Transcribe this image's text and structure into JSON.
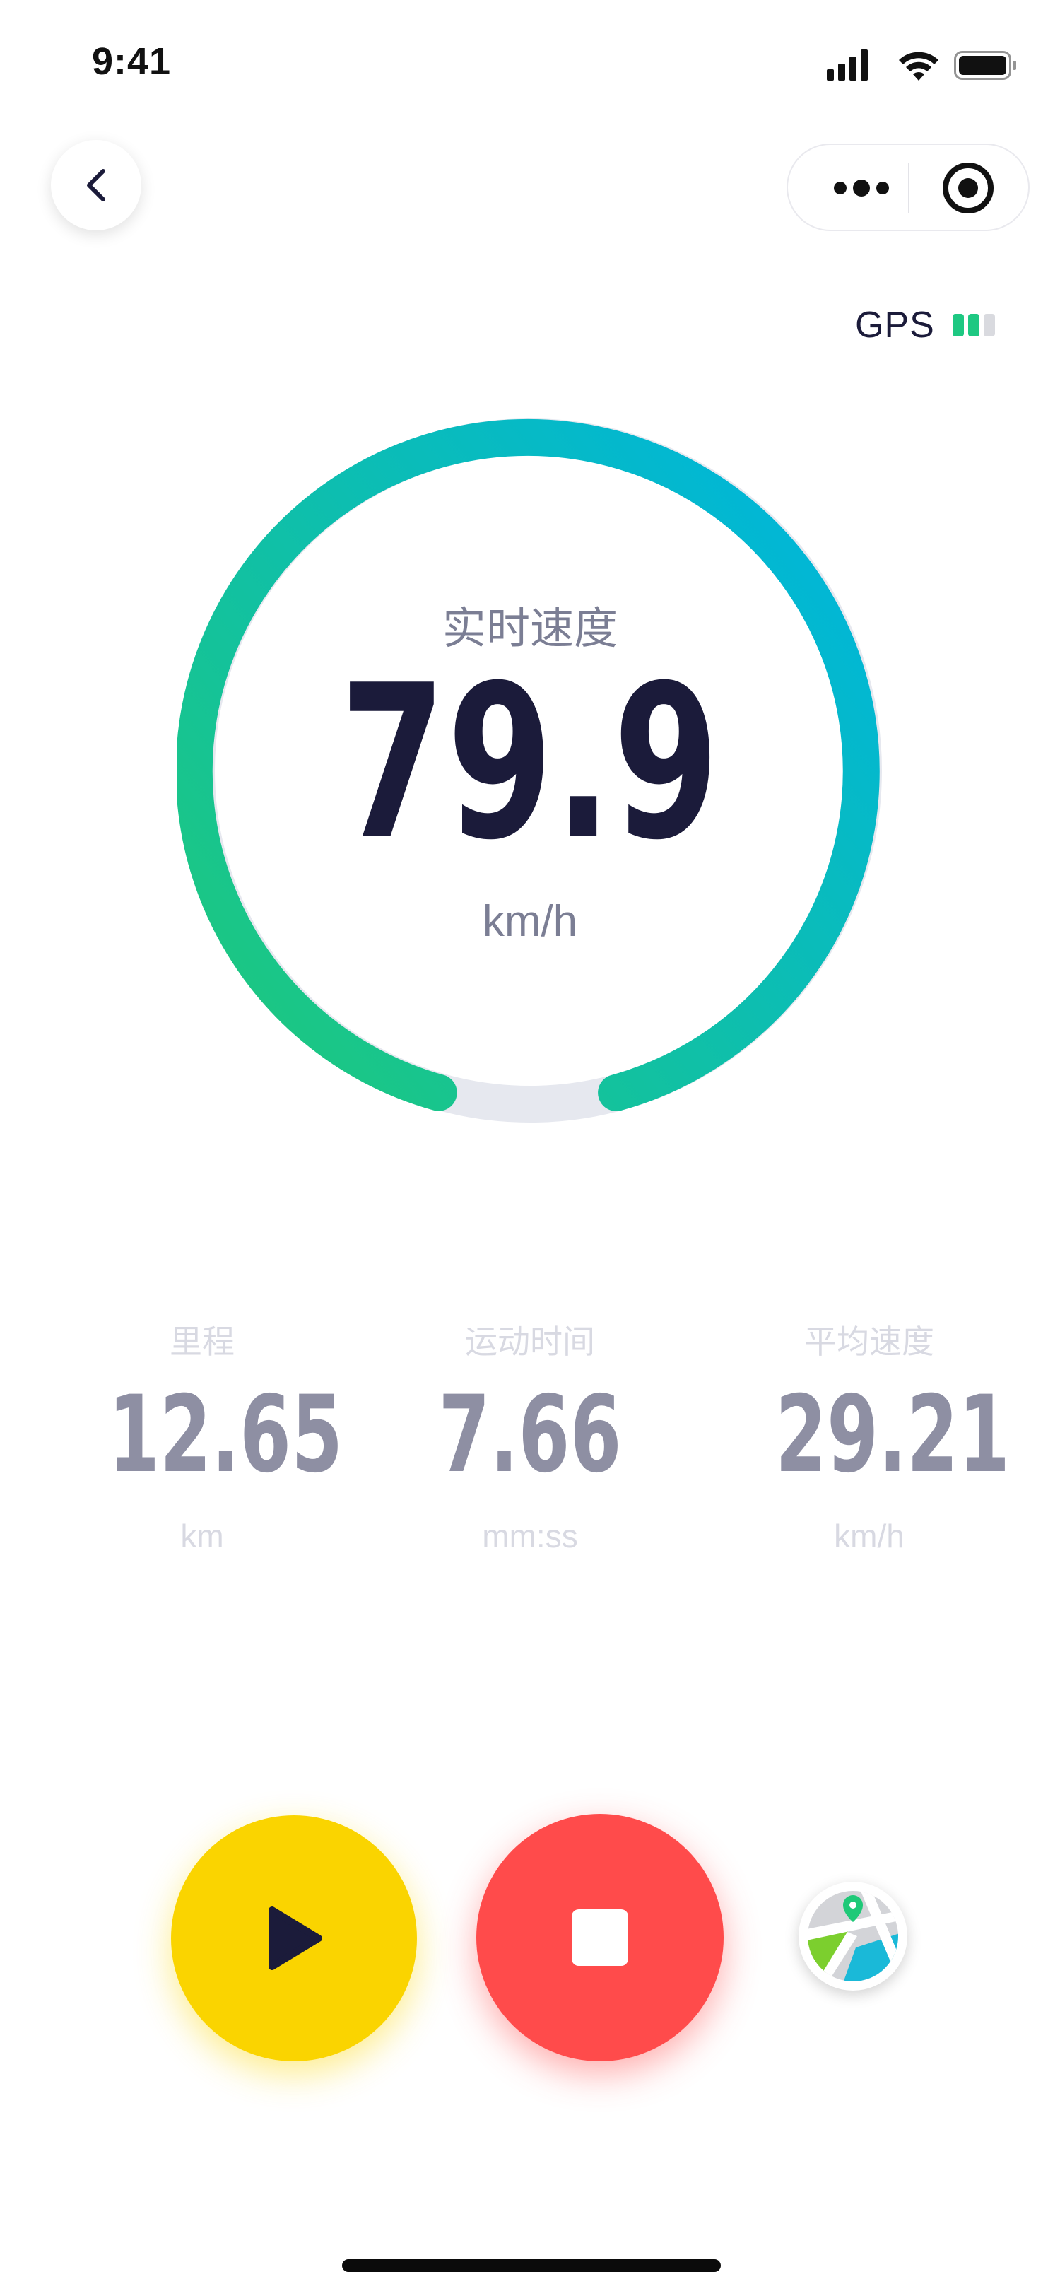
{
  "status_bar": {
    "time": "9:41",
    "icons": [
      "signal-icon",
      "wifi-icon",
      "battery-icon"
    ]
  },
  "nav": {
    "back_icon": "chevron-left-icon",
    "capsule_icons": [
      "more-dots-icon",
      "target-icon"
    ]
  },
  "gps": {
    "label": "GPS",
    "signal_level": 0.66
  },
  "gauge": {
    "title": "实时速度",
    "value": "79.9",
    "unit": "km/h",
    "gradient_start": "#1fc978",
    "gradient_end": "#00b6d9",
    "track_color": "#e6e8ef"
  },
  "stats": [
    {
      "label": "里程",
      "value": "12.65",
      "unit": "km"
    },
    {
      "label": "运动时间",
      "value": "7.66",
      "unit": "mm:ss"
    },
    {
      "label": "平均速度",
      "value": "29.21",
      "unit": "km/h"
    }
  ],
  "controls": {
    "play_icon": "play-icon",
    "stop_icon": "stop-icon",
    "map_icon": "map-icon",
    "play_color": "#fad400",
    "stop_color": "#ff4b4b"
  }
}
